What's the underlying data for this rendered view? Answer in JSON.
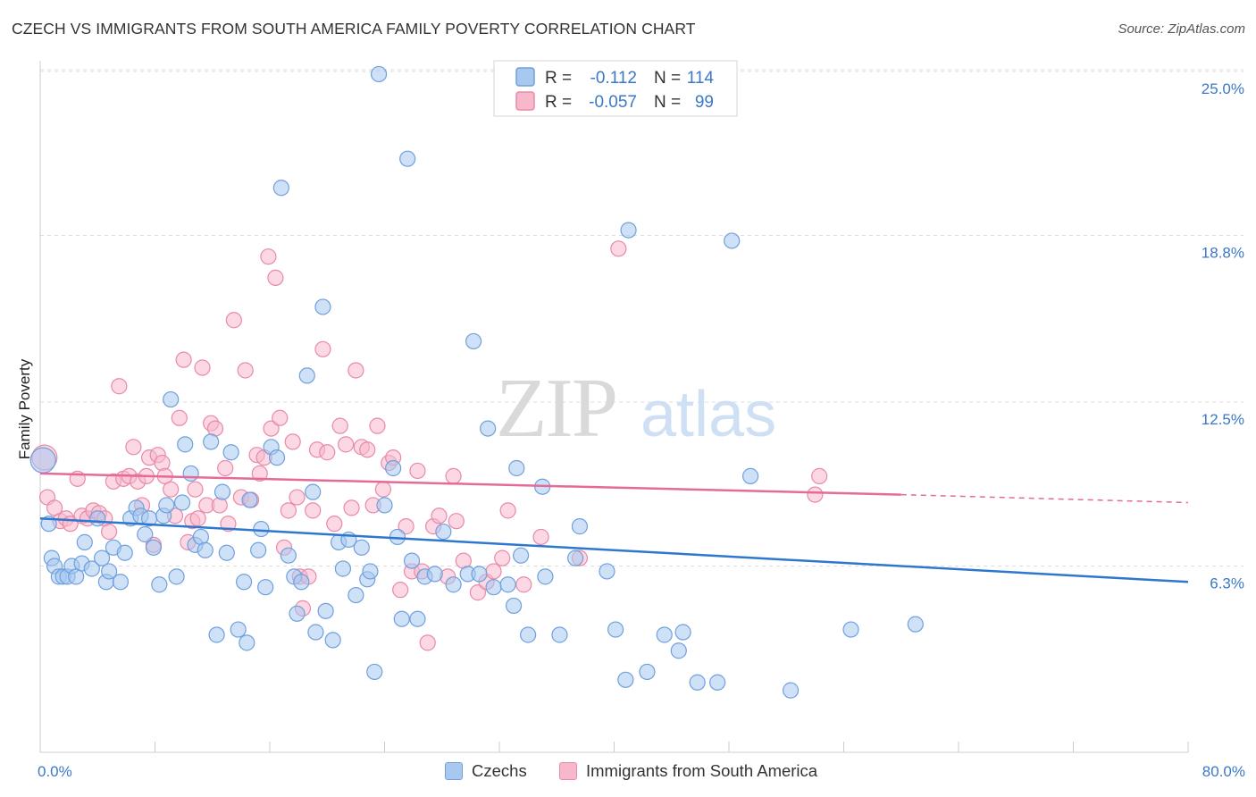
{
  "header": {
    "title": "CZECH VS IMMIGRANTS FROM SOUTH AMERICA FAMILY POVERTY CORRELATION CHART",
    "source": "Source: ZipAtlas.com"
  },
  "watermark": {
    "zip": "ZIP",
    "atlas": "atlas"
  },
  "colors": {
    "blue_fill": "#a8c8f0",
    "blue_stroke": "#6fa0dc",
    "blue_line": "#2e77cf",
    "pink_fill": "#f7b8cc",
    "pink_stroke": "#e88aa8",
    "pink_line": "#e46b98",
    "tick_label": "#3a78c9",
    "grid": "#dcdcdc"
  },
  "legend_top": {
    "rows": [
      {
        "r_label": "R =",
        "r_value": "-0.112",
        "n_label": "N =",
        "n_value": "114"
      },
      {
        "r_label": "R =",
        "r_value": "-0.057",
        "n_label": "N =",
        "n_value": "99"
      }
    ]
  },
  "legend_bottom": {
    "czechs": "Czechs",
    "immigrants": "Immigrants from South America"
  },
  "chart_data": {
    "type": "scatter",
    "title": "CZECH VS IMMIGRANTS FROM SOUTH AMERICA FAMILY POVERTY CORRELATION CHART",
    "xlabel": "",
    "ylabel": "Family Poverty",
    "xlim": [
      0,
      80
    ],
    "ylim": [
      0,
      26
    ],
    "x_tick_labels": [
      {
        "value": 0,
        "label": "0.0%"
      },
      {
        "value": 80,
        "label": "80.0%"
      }
    ],
    "y_ticks": [
      {
        "value": 6.3,
        "label": "6.3%"
      },
      {
        "value": 12.5,
        "label": "12.5%"
      },
      {
        "value": 18.8,
        "label": "18.8%"
      },
      {
        "value": 25.0,
        "label": "25.0%"
      }
    ],
    "grid": "horizontal dashed",
    "legend": "top-center",
    "series": [
      {
        "name": "Czechs",
        "color": "#a8c8f0",
        "trend": {
          "x": [
            0,
            80
          ],
          "y": [
            8.1,
            5.7
          ]
        },
        "points": [
          [
            0.2,
            10.3
          ],
          [
            0.6,
            7.9
          ],
          [
            0.8,
            6.6
          ],
          [
            1.0,
            6.3
          ],
          [
            1.3,
            5.9
          ],
          [
            1.6,
            5.9
          ],
          [
            1.9,
            5.9
          ],
          [
            2.2,
            6.3
          ],
          [
            2.5,
            5.9
          ],
          [
            2.9,
            6.4
          ],
          [
            3.1,
            7.2
          ],
          [
            3.6,
            6.2
          ],
          [
            4.0,
            8.1
          ],
          [
            4.3,
            6.6
          ],
          [
            4.6,
            5.7
          ],
          [
            4.8,
            6.1
          ],
          [
            5.1,
            7.0
          ],
          [
            5.6,
            5.7
          ],
          [
            5.9,
            6.8
          ],
          [
            6.3,
            8.1
          ],
          [
            6.7,
            8.5
          ],
          [
            7.0,
            8.2
          ],
          [
            7.3,
            7.5
          ],
          [
            7.6,
            8.1
          ],
          [
            7.9,
            7.0
          ],
          [
            8.3,
            5.6
          ],
          [
            8.6,
            8.2
          ],
          [
            8.8,
            8.6
          ],
          [
            9.1,
            12.6
          ],
          [
            9.5,
            5.9
          ],
          [
            9.9,
            8.7
          ],
          [
            10.1,
            10.9
          ],
          [
            10.5,
            9.8
          ],
          [
            10.8,
            7.1
          ],
          [
            11.2,
            7.4
          ],
          [
            11.5,
            6.9
          ],
          [
            11.9,
            11.0
          ],
          [
            12.3,
            3.7
          ],
          [
            12.7,
            9.1
          ],
          [
            13.0,
            6.8
          ],
          [
            13.3,
            10.6
          ],
          [
            13.8,
            3.9
          ],
          [
            14.2,
            5.7
          ],
          [
            14.4,
            3.4
          ],
          [
            14.6,
            8.8
          ],
          [
            15.2,
            6.9
          ],
          [
            15.4,
            7.7
          ],
          [
            15.7,
            5.5
          ],
          [
            16.1,
            10.8
          ],
          [
            16.5,
            10.4
          ],
          [
            16.8,
            20.6
          ],
          [
            17.3,
            6.7
          ],
          [
            17.7,
            5.9
          ],
          [
            17.9,
            4.5
          ],
          [
            18.2,
            5.7
          ],
          [
            18.6,
            13.5
          ],
          [
            19.0,
            9.1
          ],
          [
            19.2,
            3.8
          ],
          [
            19.7,
            16.1
          ],
          [
            19.9,
            4.6
          ],
          [
            20.4,
            3.5
          ],
          [
            20.8,
            7.2
          ],
          [
            21.1,
            6.2
          ],
          [
            21.5,
            7.3
          ],
          [
            22.0,
            5.2
          ],
          [
            22.4,
            7.0
          ],
          [
            22.8,
            5.8
          ],
          [
            23.0,
            6.1
          ],
          [
            23.3,
            2.3
          ],
          [
            23.6,
            24.9
          ],
          [
            24.0,
            8.6
          ],
          [
            24.6,
            10.0
          ],
          [
            24.9,
            7.4
          ],
          [
            25.2,
            4.3
          ],
          [
            25.6,
            21.7
          ],
          [
            25.9,
            6.5
          ],
          [
            26.3,
            4.3
          ],
          [
            26.8,
            5.9
          ],
          [
            27.5,
            6.0
          ],
          [
            28.1,
            7.6
          ],
          [
            28.8,
            5.6
          ],
          [
            29.8,
            6.0
          ],
          [
            30.2,
            14.8
          ],
          [
            30.6,
            6.0
          ],
          [
            31.2,
            11.5
          ],
          [
            31.6,
            5.5
          ],
          [
            32.6,
            5.6
          ],
          [
            33.0,
            4.8
          ],
          [
            33.2,
            10.0
          ],
          [
            33.5,
            6.7
          ],
          [
            34.0,
            3.7
          ],
          [
            35.0,
            9.3
          ],
          [
            35.2,
            5.9
          ],
          [
            36.2,
            3.7
          ],
          [
            37.3,
            6.6
          ],
          [
            37.6,
            7.8
          ],
          [
            39.5,
            6.1
          ],
          [
            40.1,
            3.9
          ],
          [
            40.8,
            2.0
          ],
          [
            41.0,
            19.0
          ],
          [
            42.3,
            2.3
          ],
          [
            43.5,
            3.7
          ],
          [
            44.5,
            3.1
          ],
          [
            44.8,
            3.8
          ],
          [
            45.8,
            1.9
          ],
          [
            47.2,
            1.9
          ],
          [
            48.2,
            18.6
          ],
          [
            49.5,
            9.7
          ],
          [
            52.3,
            1.6
          ],
          [
            56.5,
            3.9
          ],
          [
            61.0,
            4.1
          ]
        ]
      },
      {
        "name": "Immigrants from South America",
        "color": "#f7b8cc",
        "trend": {
          "x": [
            0,
            60
          ],
          "y": [
            9.8,
            9.0
          ]
        },
        "trend_dashed": {
          "x": [
            60,
            80
          ],
          "y": [
            9.0,
            8.7
          ]
        },
        "points": [
          [
            0.3,
            10.4
          ],
          [
            0.5,
            8.9
          ],
          [
            1.0,
            8.5
          ],
          [
            1.4,
            8.0
          ],
          [
            1.8,
            8.1
          ],
          [
            2.1,
            7.9
          ],
          [
            2.6,
            9.6
          ],
          [
            2.9,
            8.2
          ],
          [
            3.3,
            8.1
          ],
          [
            3.7,
            8.4
          ],
          [
            4.1,
            8.3
          ],
          [
            4.5,
            8.1
          ],
          [
            4.8,
            7.6
          ],
          [
            5.1,
            9.5
          ],
          [
            5.5,
            13.1
          ],
          [
            5.8,
            9.6
          ],
          [
            6.2,
            9.7
          ],
          [
            6.5,
            10.8
          ],
          [
            6.8,
            9.5
          ],
          [
            7.1,
            8.6
          ],
          [
            7.4,
            9.7
          ],
          [
            7.6,
            10.4
          ],
          [
            7.9,
            7.1
          ],
          [
            8.2,
            10.5
          ],
          [
            8.5,
            10.2
          ],
          [
            8.7,
            9.7
          ],
          [
            9.1,
            9.2
          ],
          [
            9.4,
            8.2
          ],
          [
            9.7,
            11.9
          ],
          [
            10.0,
            14.1
          ],
          [
            10.3,
            7.2
          ],
          [
            10.6,
            8.0
          ],
          [
            10.8,
            9.2
          ],
          [
            11.0,
            8.1
          ],
          [
            11.3,
            13.8
          ],
          [
            11.6,
            8.6
          ],
          [
            11.9,
            11.7
          ],
          [
            12.2,
            11.5
          ],
          [
            12.5,
            8.6
          ],
          [
            12.9,
            10.0
          ],
          [
            13.1,
            7.9
          ],
          [
            13.5,
            15.6
          ],
          [
            14.0,
            8.9
          ],
          [
            14.3,
            13.7
          ],
          [
            14.7,
            8.8
          ],
          [
            15.1,
            10.5
          ],
          [
            15.3,
            9.8
          ],
          [
            15.6,
            10.4
          ],
          [
            15.9,
            18.0
          ],
          [
            16.1,
            11.5
          ],
          [
            16.4,
            17.2
          ],
          [
            16.7,
            11.9
          ],
          [
            17.0,
            7.0
          ],
          [
            17.3,
            8.4
          ],
          [
            17.6,
            11.0
          ],
          [
            17.9,
            8.9
          ],
          [
            18.1,
            5.9
          ],
          [
            18.3,
            4.7
          ],
          [
            18.7,
            5.9
          ],
          [
            19.0,
            8.4
          ],
          [
            19.3,
            10.7
          ],
          [
            19.7,
            14.5
          ],
          [
            20.0,
            10.6
          ],
          [
            20.5,
            7.9
          ],
          [
            20.9,
            11.6
          ],
          [
            21.3,
            10.9
          ],
          [
            21.7,
            8.5
          ],
          [
            22.0,
            13.7
          ],
          [
            22.4,
            10.8
          ],
          [
            22.8,
            10.7
          ],
          [
            23.2,
            8.6
          ],
          [
            23.5,
            11.6
          ],
          [
            23.9,
            9.2
          ],
          [
            24.3,
            10.2
          ],
          [
            24.6,
            10.4
          ],
          [
            25.1,
            5.4
          ],
          [
            25.5,
            7.8
          ],
          [
            25.9,
            6.1
          ],
          [
            26.3,
            9.9
          ],
          [
            26.6,
            6.1
          ],
          [
            27.0,
            3.4
          ],
          [
            27.4,
            7.8
          ],
          [
            27.8,
            8.2
          ],
          [
            28.4,
            5.9
          ],
          [
            28.8,
            9.7
          ],
          [
            29.0,
            8.0
          ],
          [
            29.5,
            6.5
          ],
          [
            30.5,
            5.3
          ],
          [
            31.1,
            5.7
          ],
          [
            31.6,
            6.1
          ],
          [
            32.2,
            6.6
          ],
          [
            32.6,
            8.4
          ],
          [
            33.7,
            5.6
          ],
          [
            34.9,
            7.4
          ],
          [
            37.6,
            6.6
          ],
          [
            40.3,
            18.3
          ],
          [
            54.0,
            9.0
          ],
          [
            54.3,
            9.7
          ]
        ]
      }
    ]
  }
}
